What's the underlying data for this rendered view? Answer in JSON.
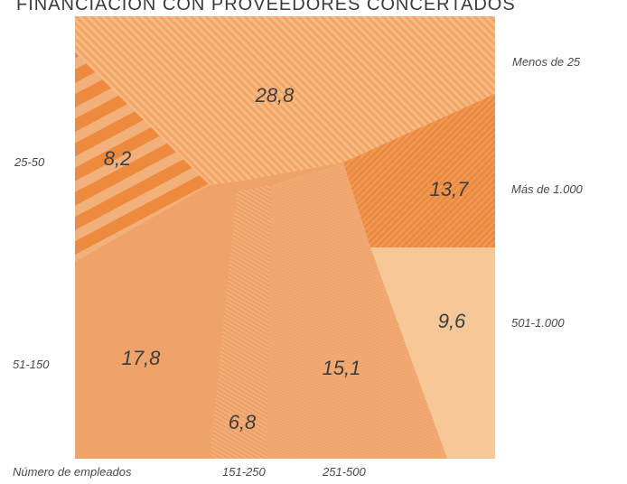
{
  "title": "FINANCIACIÓN CON PROVEEDORES CONCERTADOS",
  "caption": "Número de empleados",
  "colors": {
    "c_menos25": "#f3a565",
    "c_25_50": "#ee8a3e",
    "c_51_150": "#efa26a",
    "c_151_250": "#ef9f62",
    "c_251_500": "#f0a56c",
    "c_501_1000": "#f6c898",
    "c_mas1000": "#ec8a40"
  },
  "chart_data": {
    "type": "pie",
    "labels": [
      "Menos de 25",
      "Más de 1.000",
      "501-1.000",
      "251-500",
      "151-250",
      "51-150",
      "25-50"
    ],
    "values": [
      28.8,
      13.7,
      9.6,
      15.1,
      6.8,
      17.8,
      8.2
    ],
    "value_labels": [
      "28,8",
      "13,7",
      "9,6",
      "15,1",
      "6,8",
      "17,8",
      "8,2"
    ],
    "title": "FINANCIACIÓN CON PROVEEDORES CONCERTADOS",
    "xlabel": "Número de empleados",
    "legend": "category labels placed around the square"
  }
}
